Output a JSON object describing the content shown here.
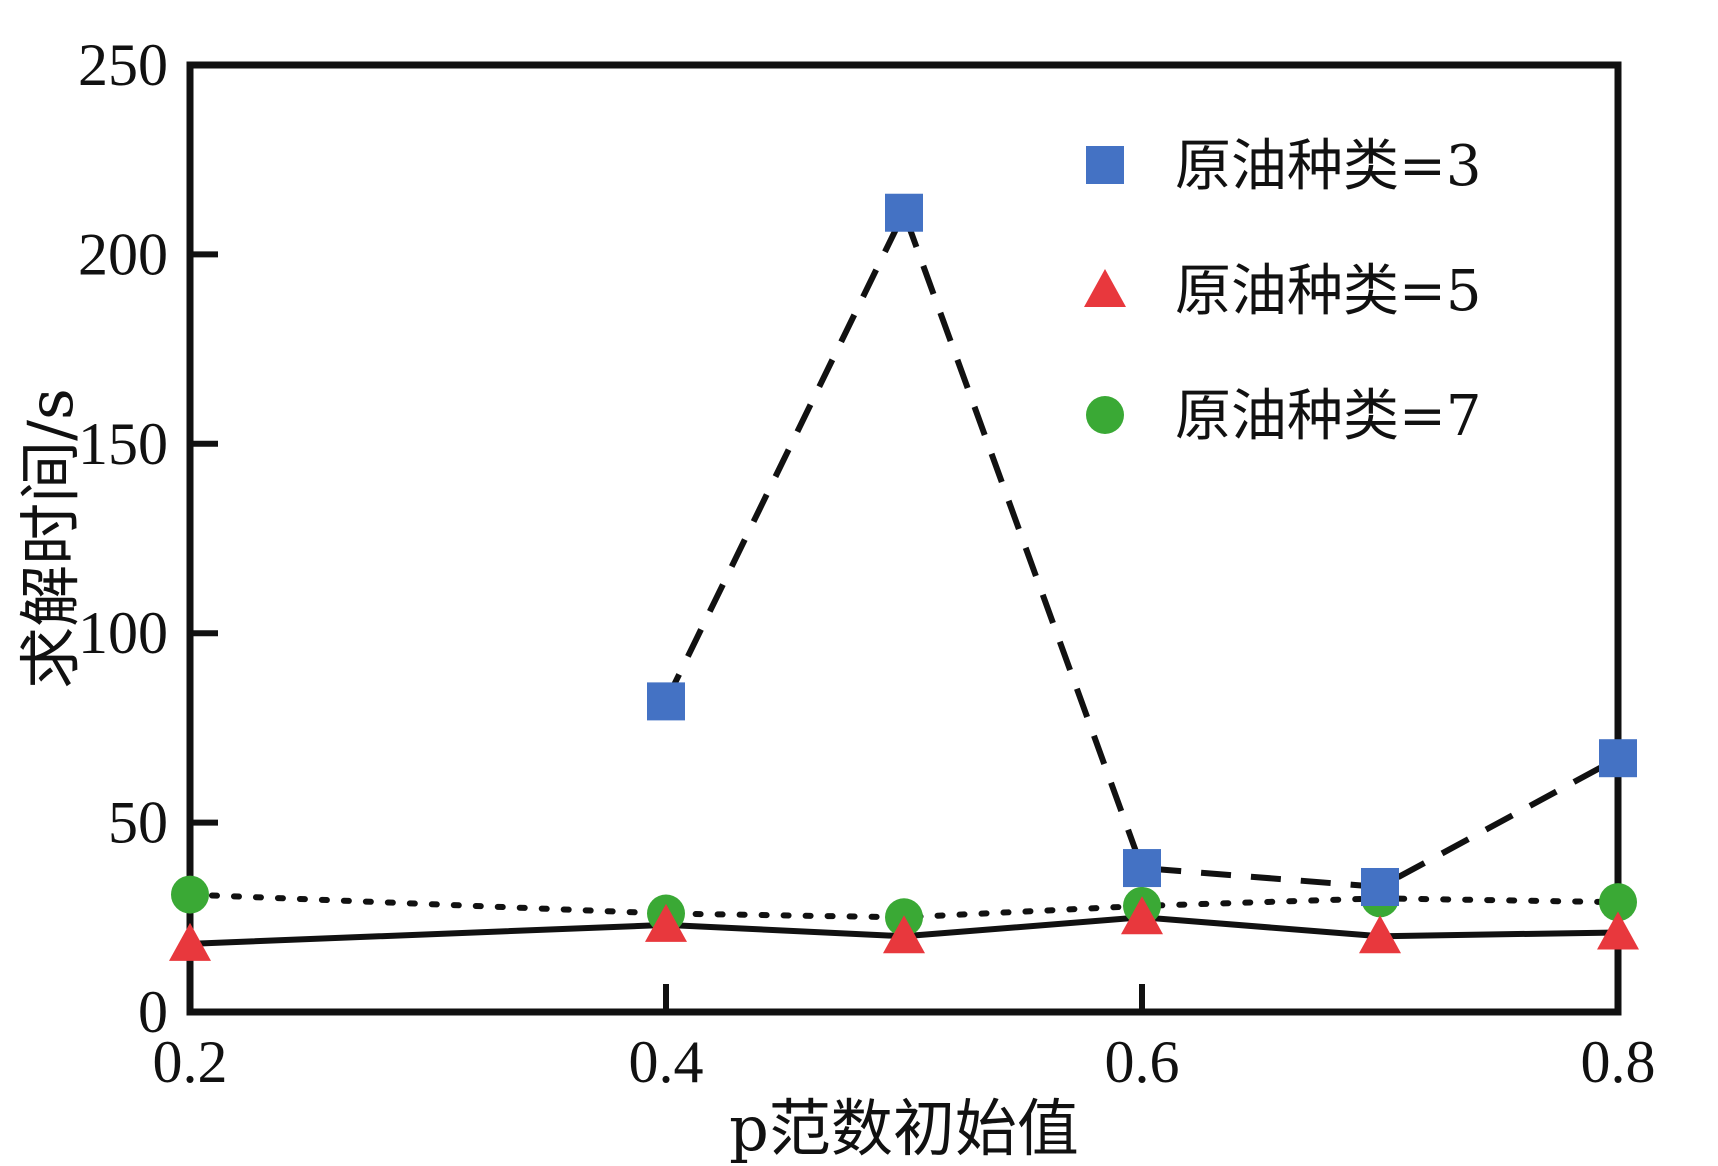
{
  "chart_data": {
    "type": "line",
    "title": "",
    "xlabel": "p范数初始值",
    "ylabel": "求解时间/s",
    "xlim": [
      0.2,
      0.8
    ],
    "ylim": [
      0,
      250
    ],
    "xticks": [
      "0.2",
      "0.4",
      "0.6",
      "0.8"
    ],
    "yticks": [
      "0",
      "50",
      "100",
      "150",
      "200",
      "250"
    ],
    "grid": false,
    "legend_position": "top-right",
    "series": [
      {
        "name": "原油种类=3",
        "marker": "square",
        "line_style": "dashed",
        "color": "#4472c4",
        "points": [
          [
            0.4,
            82
          ],
          [
            0.5,
            211
          ],
          [
            0.6,
            38
          ],
          [
            0.7,
            33
          ],
          [
            0.8,
            67
          ]
        ]
      },
      {
        "name": "原油种类=5",
        "marker": "triangle",
        "line_style": "solid",
        "color": "#e8383d",
        "points": [
          [
            0.2,
            18
          ],
          [
            0.4,
            23
          ],
          [
            0.5,
            20
          ],
          [
            0.6,
            25
          ],
          [
            0.7,
            20
          ],
          [
            0.8,
            21
          ]
        ]
      },
      {
        "name": "原油种类=7",
        "marker": "circle",
        "line_style": "dotted",
        "color": "#3aa935",
        "points": [
          [
            0.2,
            31
          ],
          [
            0.4,
            26
          ],
          [
            0.5,
            25
          ],
          [
            0.6,
            28
          ],
          [
            0.7,
            30
          ],
          [
            0.8,
            29
          ]
        ]
      }
    ]
  }
}
